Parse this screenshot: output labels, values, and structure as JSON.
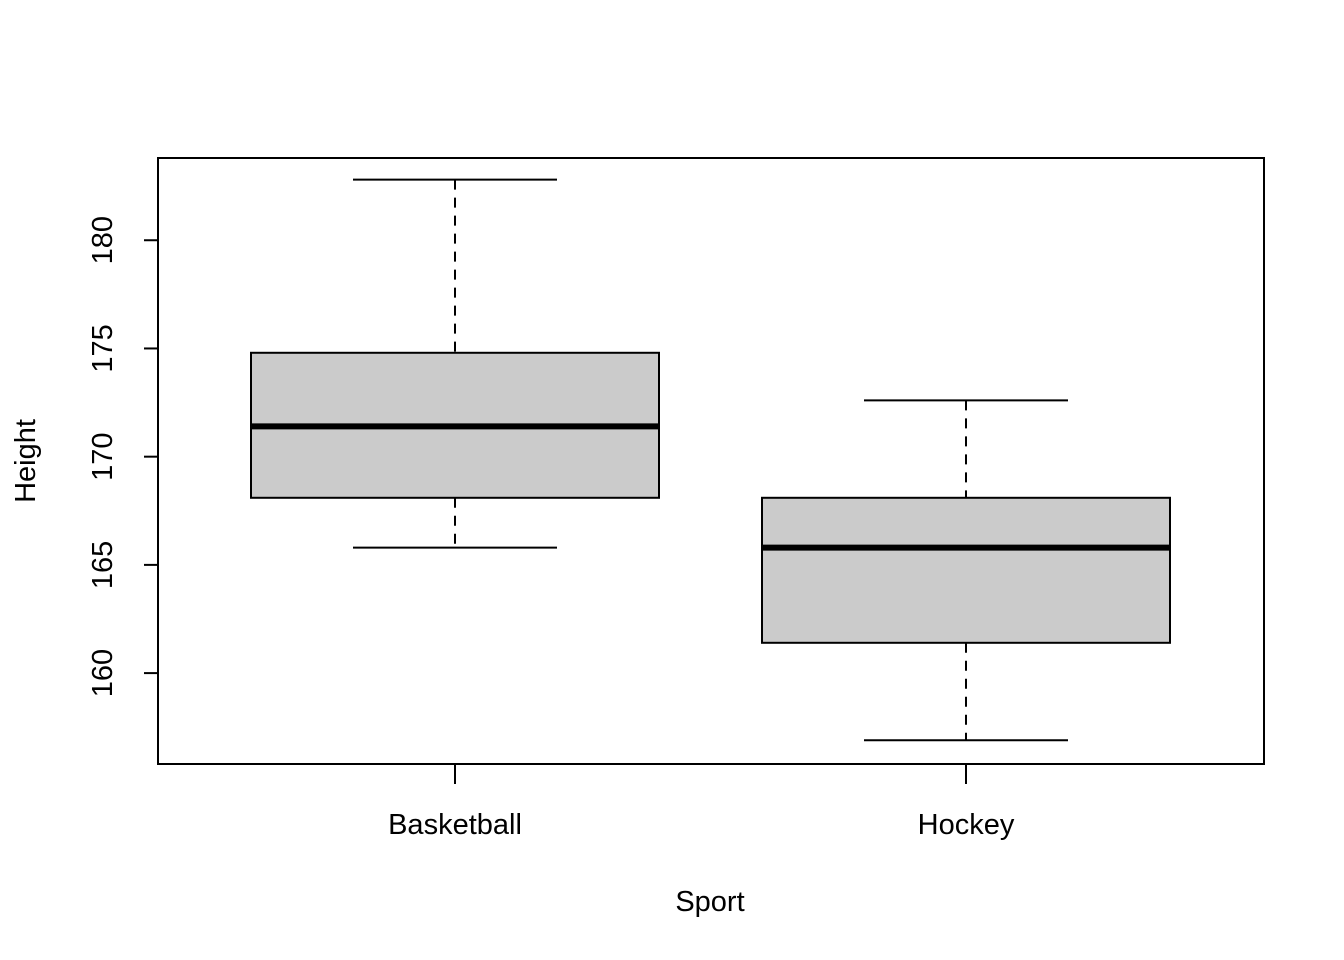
{
  "chart_data": {
    "type": "boxplot",
    "title": "",
    "xlabel": "Sport",
    "ylabel": "Height",
    "categories": [
      "Basketball",
      "Hockey"
    ],
    "boxes": [
      {
        "category": "Basketball",
        "whisker_low": 165.8,
        "q1": 168.1,
        "median": 171.4,
        "q3": 174.8,
        "whisker_high": 182.8
      },
      {
        "category": "Hockey",
        "whisker_low": 156.9,
        "q1": 161.4,
        "median": 165.8,
        "q3": 168.1,
        "whisker_high": 172.6
      }
    ],
    "yticks": [
      "160",
      "165",
      "170",
      "175",
      "180"
    ],
    "ylim": [
      155.8,
      183.8
    ],
    "grid": false,
    "legend": "none"
  },
  "colors": {
    "box_fill": "#cbcbcb",
    "stroke": "#000000",
    "background": "#ffffff"
  }
}
